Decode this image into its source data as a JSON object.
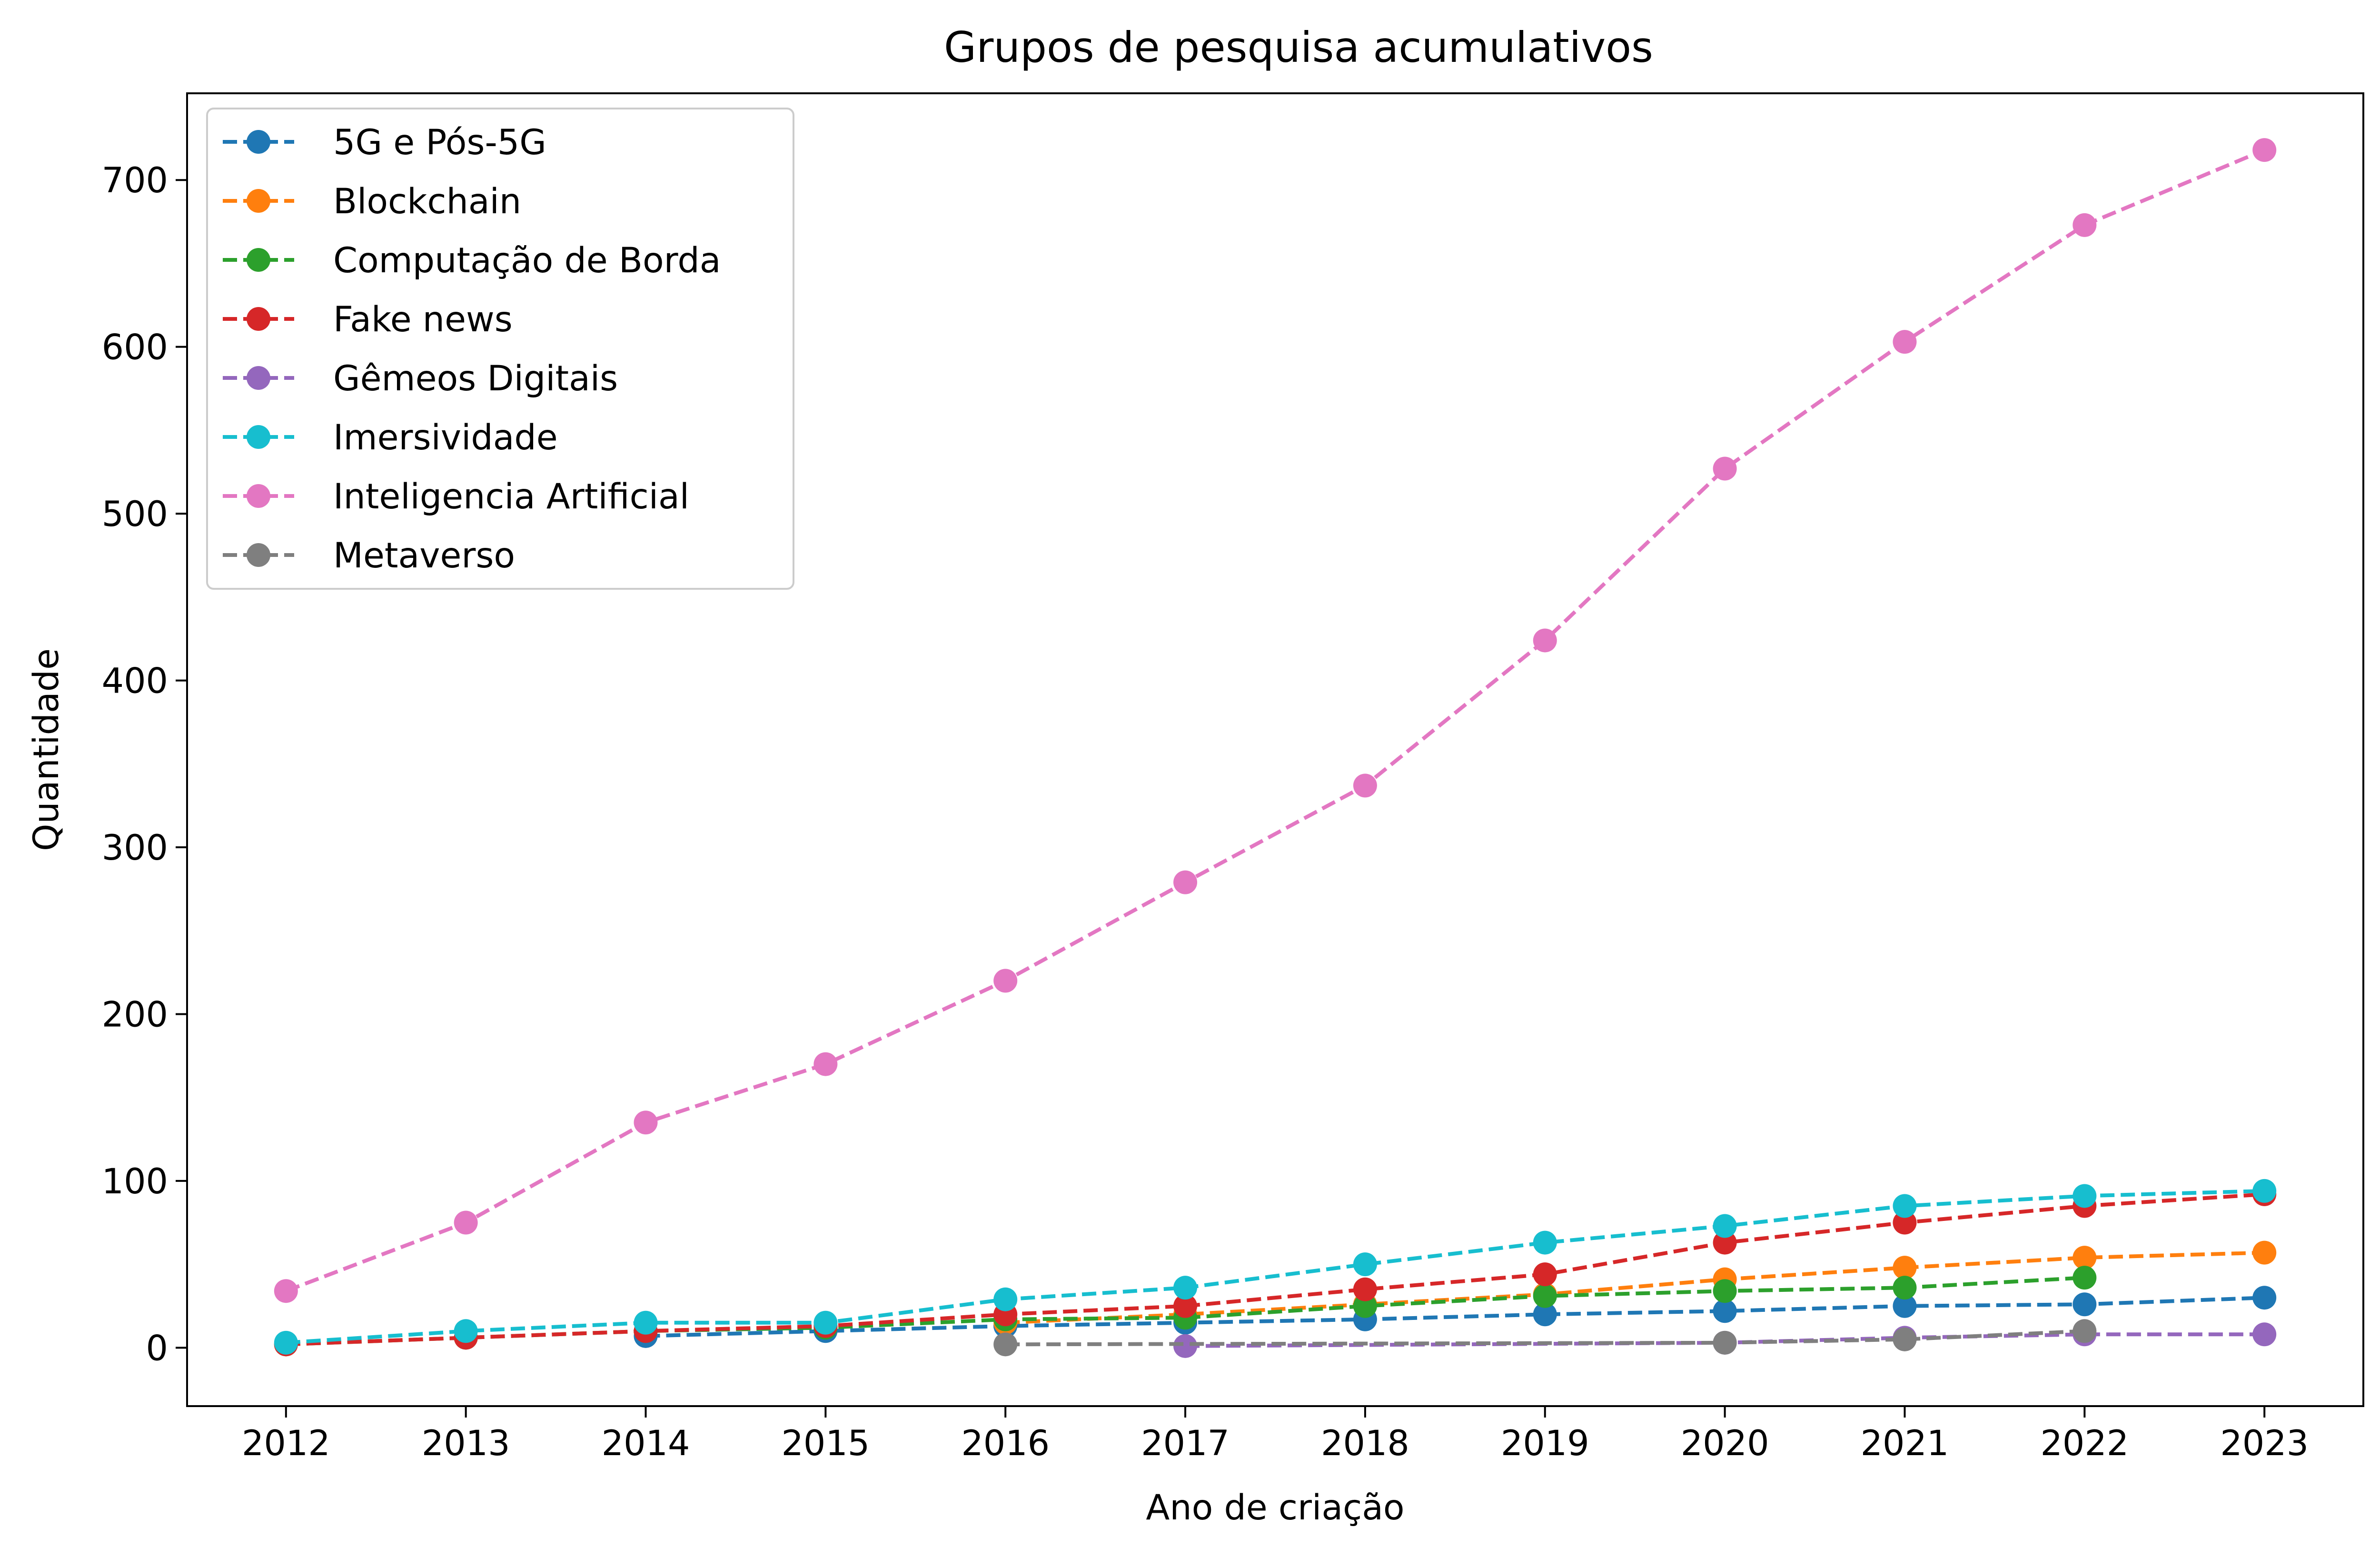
{
  "chart_data": {
    "type": "line",
    "title": "Grupos de pesquisa acumulativos",
    "xlabel": "Ano de criação",
    "ylabel": "Quantidade",
    "x": [
      2012,
      2013,
      2014,
      2015,
      2016,
      2017,
      2018,
      2019,
      2020,
      2021,
      2022,
      2023
    ],
    "x_tick_labels": [
      "2012",
      "2013",
      "2014",
      "2015",
      "2016",
      "2017",
      "2018",
      "2019",
      "2020",
      "2021",
      "2022",
      "2023"
    ],
    "ylim": [
      -35,
      752
    ],
    "y_ticks": [
      0,
      100,
      200,
      300,
      400,
      500,
      600,
      700
    ],
    "y_tick_labels": [
      "0",
      "100",
      "200",
      "300",
      "400",
      "500",
      "600",
      "700"
    ],
    "grid": false,
    "legend_position": "upper-left",
    "line_style": "dashed",
    "marker": "circle",
    "series": [
      {
        "name": "5G e Pós-5G",
        "color": "#1f77b4",
        "x": [
          2014,
          2015,
          2016,
          2017,
          2018,
          2019,
          2020,
          2021,
          2022,
          2023
        ],
        "values": [
          7,
          10,
          13,
          15,
          17,
          20,
          22,
          25,
          26,
          30
        ]
      },
      {
        "name": "Blockchain",
        "color": "#ff7f0e",
        "x": [
          2016,
          2017,
          2018,
          2019,
          2020,
          2021,
          2022,
          2023
        ],
        "values": [
          15,
          20,
          26,
          32,
          41,
          48,
          54,
          57
        ]
      },
      {
        "name": "Computação de Borda",
        "color": "#2ca02c",
        "x": [
          2012,
          2013,
          2014,
          2015,
          2016,
          2017,
          2018,
          2019,
          2020,
          2021,
          2022
        ],
        "values": [
          2,
          6,
          10,
          12,
          17,
          18,
          25,
          31,
          34,
          36,
          42
        ]
      },
      {
        "name": "Fake news",
        "color": "#d62728",
        "x": [
          2012,
          2013,
          2014,
          2015,
          2016,
          2017,
          2018,
          2019,
          2020,
          2021,
          2022,
          2023
        ],
        "values": [
          2,
          6,
          10,
          13,
          20,
          25,
          35,
          44,
          63,
          75,
          85,
          92
        ]
      },
      {
        "name": "Gêmeos Digitais",
        "color": "#9467bd",
        "x": [
          2017,
          2020,
          2021,
          2022,
          2023
        ],
        "values": [
          1,
          3,
          6,
          8,
          8
        ]
      },
      {
        "name": "Imersividade",
        "color": "#17becf",
        "x": [
          2012,
          2013,
          2014,
          2015,
          2016,
          2017,
          2018,
          2019,
          2020,
          2021,
          2022,
          2023
        ],
        "values": [
          3,
          10,
          15,
          15,
          29,
          36,
          50,
          63,
          73,
          85,
          91,
          94
        ]
      },
      {
        "name": "Inteligencia Artificial",
        "color": "#e377c2",
        "x": [
          2012,
          2013,
          2014,
          2015,
          2016,
          2017,
          2018,
          2019,
          2020,
          2021,
          2022,
          2023
        ],
        "values": [
          34,
          75,
          135,
          170,
          220,
          279,
          337,
          424,
          527,
          603,
          673,
          718
        ]
      },
      {
        "name": "Metaverso",
        "color": "#7f7f7f",
        "x": [
          2016,
          2020,
          2021,
          2022
        ],
        "values": [
          2,
          3,
          5,
          10
        ]
      }
    ]
  }
}
